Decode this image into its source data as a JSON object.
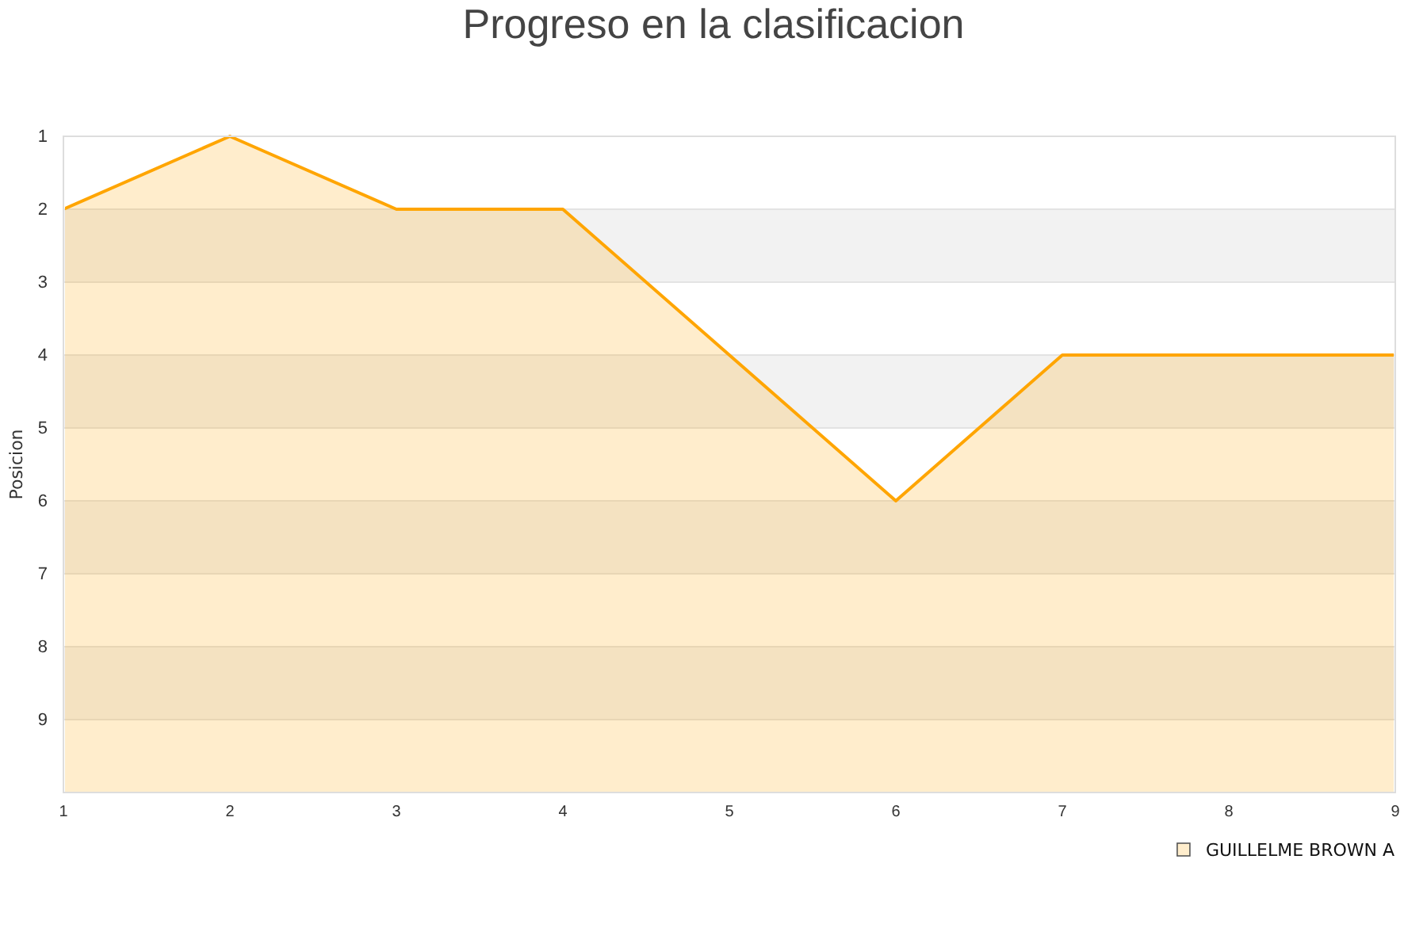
{
  "chart_data": {
    "type": "area",
    "title": "Progreso en la clasificacion",
    "ylabel": "Posicion",
    "x": [
      1,
      2,
      3,
      4,
      5,
      6,
      7,
      8,
      9
    ],
    "series": [
      {
        "name": "GUILLELME BROWN A",
        "color": "#ffa500",
        "values": [
          2,
          1,
          2,
          2,
          4,
          6,
          4,
          4,
          4
        ]
      }
    ],
    "xlim": [
      1,
      9
    ],
    "xticks": [
      1,
      2,
      3,
      4,
      5,
      6,
      7,
      8,
      9
    ],
    "ylim": [
      10,
      1
    ],
    "yticks": [
      1,
      2,
      3,
      4,
      5,
      6,
      7,
      8,
      9
    ],
    "grid": true,
    "legend": "bottom right"
  }
}
